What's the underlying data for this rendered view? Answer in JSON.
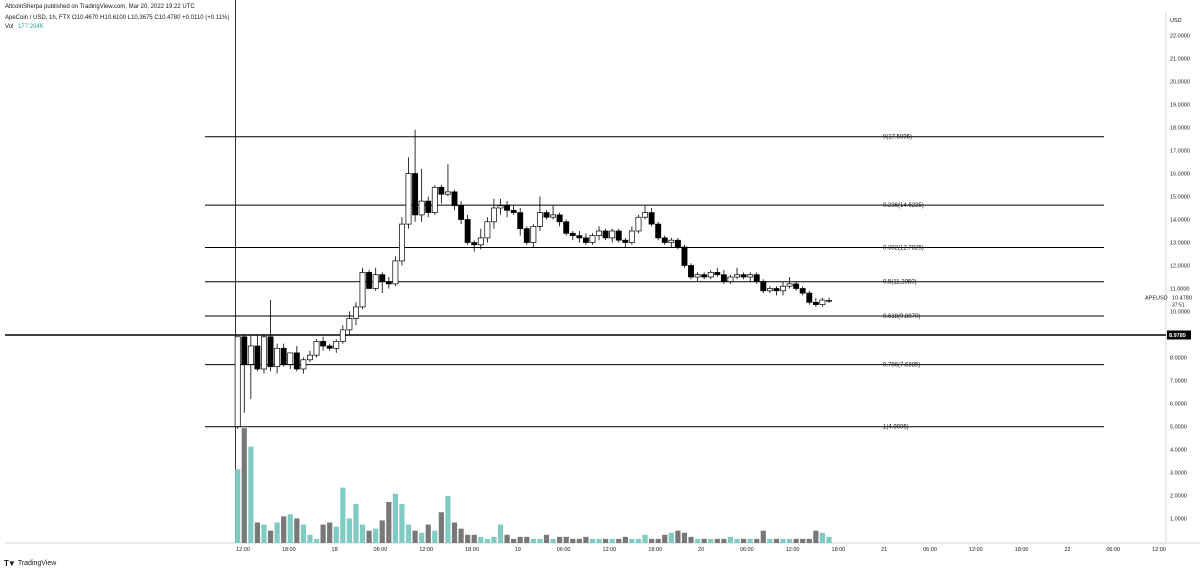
{
  "header": {
    "publisher": "AltcoinSherpa published on TradingView.com, Mar 20, 2022 19:22 UTC",
    "symbol_line": "ApeCoin / USD, 1h, FTX  O10.4670  H10.6100  L10.3675  C10.4780  +0.0110 (+0.11%)",
    "vol_label": "Vol",
    "vol_value": "177.204K",
    "vol_color": "#26a69a"
  },
  "footer": {
    "brand": "TradingView",
    "logo_icon": "tradingview-logo-icon"
  },
  "chart_data": {
    "type": "candlestick",
    "symbol": "APEUSD",
    "interval": "1h",
    "exchange": "FTX",
    "ylim": [
      0,
      22
    ],
    "y_unit_label": "USD",
    "y_ticks": [
      "1.0000",
      "2.0000",
      "3.0000",
      "4.0000",
      "5.0000",
      "6.0000",
      "7.0000",
      "8.0000",
      "9.0000",
      "10.0000",
      "11.0000",
      "12.0000",
      "13.0000",
      "14.0000",
      "15.0000",
      "16.0000",
      "17.0000",
      "18.0000",
      "19.0000",
      "20.0000",
      "21.0000",
      "22.0000"
    ],
    "x_ticks": [
      "12:00",
      "18:00",
      "18",
      "06:00",
      "12:00",
      "18:00",
      "19",
      "06:00",
      "12:00",
      "18:00",
      "20",
      "06:00",
      "12:00",
      "18:00",
      "21",
      "06:00",
      "12:00",
      "18:00",
      "22",
      "06:00",
      "12:00"
    ],
    "last_price": {
      "symbol": "APEUSD",
      "value": "10.4780",
      "countdown": "37:51"
    },
    "marked_level": {
      "label": "8.9785",
      "value": 8.9785
    },
    "fib_levels": [
      {
        "ratio": "0",
        "label": "0(17.5995)",
        "value": 17.5995
      },
      {
        "ratio": "0.236",
        "label": "0.236(14.6235)",
        "value": 14.6235
      },
      {
        "ratio": "0.382",
        "label": "0.382(12.7825)",
        "value": 12.7825
      },
      {
        "ratio": "0.5",
        "label": "0.5(11.2950)",
        "value": 11.295
      },
      {
        "ratio": "0.618",
        "label": "0.618(9.8070)",
        "value": 9.807
      },
      {
        "ratio": "0.786",
        "label": "0.786(7.6885)",
        "value": 7.6885
      },
      {
        "ratio": "1",
        "label": "1(4.9905)",
        "value": 4.9905
      }
    ],
    "candles": [
      [
        5.0,
        8.9,
        4.9,
        8.9
      ],
      [
        8.9,
        9.0,
        5.6,
        7.7
      ],
      [
        7.7,
        9.0,
        6.2,
        8.5
      ],
      [
        8.5,
        9.0,
        7.4,
        7.5
      ],
      [
        7.5,
        9.0,
        7.3,
        8.9
      ],
      [
        8.9,
        10.5,
        7.4,
        7.6
      ],
      [
        7.6,
        8.6,
        7.3,
        8.4
      ],
      [
        8.4,
        8.6,
        7.6,
        7.7
      ],
      [
        7.7,
        8.2,
        7.5,
        8.2
      ],
      [
        8.2,
        8.5,
        7.4,
        7.5
      ],
      [
        7.5,
        8.0,
        7.3,
        7.9
      ],
      [
        7.9,
        8.3,
        7.8,
        8.1
      ],
      [
        8.1,
        8.8,
        8.0,
        8.7
      ],
      [
        8.7,
        8.9,
        8.3,
        8.5
      ],
      [
        8.5,
        8.6,
        8.3,
        8.4
      ],
      [
        8.4,
        8.8,
        8.2,
        8.7
      ],
      [
        8.7,
        9.4,
        8.6,
        9.2
      ],
      [
        9.2,
        10.0,
        9.0,
        9.7
      ],
      [
        9.7,
        10.4,
        9.4,
        10.2
      ],
      [
        10.2,
        11.9,
        10.1,
        11.7
      ],
      [
        11.7,
        11.8,
        11.0,
        11.0
      ],
      [
        11.0,
        11.9,
        10.9,
        11.6
      ],
      [
        11.6,
        11.7,
        10.8,
        11.3
      ],
      [
        11.3,
        11.5,
        11.0,
        11.2
      ],
      [
        11.2,
        12.4,
        11.1,
        12.2
      ],
      [
        12.2,
        14.1,
        12.0,
        13.8
      ],
      [
        13.8,
        16.7,
        13.6,
        16.0
      ],
      [
        16.0,
        17.9,
        13.9,
        14.2
      ],
      [
        14.2,
        16.2,
        13.9,
        14.8
      ],
      [
        14.8,
        15.0,
        14.1,
        14.3
      ],
      [
        14.3,
        15.5,
        14.2,
        15.4
      ],
      [
        15.4,
        15.5,
        14.7,
        15.1
      ],
      [
        15.1,
        16.4,
        15.0,
        15.2
      ],
      [
        15.2,
        15.3,
        14.4,
        14.6
      ],
      [
        14.6,
        14.8,
        13.8,
        14.0
      ],
      [
        14.0,
        14.2,
        12.9,
        13.0
      ],
      [
        13.0,
        13.1,
        12.6,
        12.9
      ],
      [
        12.9,
        13.6,
        12.7,
        13.2
      ],
      [
        13.2,
        14.1,
        13.0,
        13.9
      ],
      [
        13.9,
        14.9,
        13.6,
        14.5
      ],
      [
        14.5,
        14.9,
        14.2,
        14.6
      ],
      [
        14.6,
        14.8,
        14.1,
        14.4
      ],
      [
        14.4,
        14.6,
        14.2,
        14.3
      ],
      [
        14.3,
        14.5,
        13.3,
        13.6
      ],
      [
        13.6,
        13.7,
        12.9,
        13.0
      ],
      [
        13.0,
        13.8,
        12.8,
        13.7
      ],
      [
        13.7,
        15.0,
        13.5,
        14.3
      ],
      [
        14.3,
        14.4,
        14.0,
        14.1
      ],
      [
        14.1,
        14.6,
        14.0,
        14.2
      ],
      [
        14.2,
        14.3,
        13.7,
        13.9
      ],
      [
        13.9,
        14.0,
        13.3,
        13.4
      ],
      [
        13.4,
        13.5,
        13.1,
        13.3
      ],
      [
        13.3,
        13.5,
        13.0,
        13.2
      ],
      [
        13.2,
        13.4,
        12.9,
        13.0
      ],
      [
        13.0,
        13.4,
        12.9,
        13.3
      ],
      [
        13.3,
        13.7,
        13.1,
        13.5
      ],
      [
        13.5,
        13.6,
        13.1,
        13.2
      ],
      [
        13.2,
        13.6,
        13.0,
        13.5
      ],
      [
        13.5,
        13.6,
        13.0,
        13.1
      ],
      [
        13.1,
        13.2,
        12.8,
        13.0
      ],
      [
        13.0,
        13.7,
        12.9,
        13.5
      ],
      [
        13.5,
        14.2,
        13.4,
        14.1
      ],
      [
        14.1,
        14.6,
        14.0,
        14.3
      ],
      [
        14.3,
        14.5,
        13.7,
        13.8
      ],
      [
        13.8,
        13.9,
        13.1,
        13.2
      ],
      [
        13.2,
        13.3,
        12.9,
        13.0
      ],
      [
        13.0,
        13.2,
        12.8,
        13.1
      ],
      [
        13.1,
        13.2,
        12.7,
        12.8
      ],
      [
        12.8,
        12.9,
        11.9,
        12.0
      ],
      [
        12.0,
        12.1,
        11.4,
        11.5
      ],
      [
        11.5,
        11.7,
        11.3,
        11.6
      ],
      [
        11.6,
        11.7,
        11.4,
        11.5
      ],
      [
        11.5,
        11.8,
        11.4,
        11.7
      ],
      [
        11.7,
        11.9,
        11.5,
        11.6
      ],
      [
        11.6,
        11.8,
        11.2,
        11.3
      ],
      [
        11.3,
        11.6,
        11.2,
        11.5
      ],
      [
        11.5,
        11.9,
        11.4,
        11.6
      ],
      [
        11.6,
        11.7,
        11.4,
        11.5
      ],
      [
        11.5,
        11.7,
        11.3,
        11.6
      ],
      [
        11.6,
        11.7,
        11.2,
        11.3
      ],
      [
        11.3,
        11.4,
        10.8,
        10.9
      ],
      [
        10.9,
        11.1,
        10.8,
        11.0
      ],
      [
        11.0,
        11.1,
        10.7,
        10.9
      ],
      [
        10.9,
        11.3,
        10.7,
        11.1
      ],
      [
        11.1,
        11.5,
        11.0,
        11.2
      ],
      [
        11.2,
        11.3,
        10.9,
        11.0
      ],
      [
        11.0,
        11.1,
        10.7,
        10.8
      ],
      [
        10.8,
        10.9,
        10.3,
        10.4
      ],
      [
        10.4,
        10.6,
        10.2,
        10.3
      ],
      [
        10.3,
        10.6,
        10.2,
        10.5
      ],
      [
        10.47,
        10.61,
        10.37,
        10.48
      ]
    ],
    "volumes": [
      3.6,
      5.6,
      4.7,
      1.0,
      0.9,
      0.6,
      1.0,
      1.3,
      1.4,
      1.2,
      0.9,
      0.4,
      0.2,
      0.9,
      1.0,
      0.8,
      2.7,
      1.2,
      1.9,
      0.9,
      0.6,
      0.7,
      1.1,
      2.0,
      2.4,
      1.9,
      0.9,
      0.6,
      0.5,
      0.9,
      0.6,
      1.5,
      2.3,
      1.0,
      0.7,
      0.4,
      0.4,
      0.3,
      0.2,
      0.3,
      0.9,
      0.4,
      0.2,
      0.3,
      0.3,
      0.2,
      0.2,
      0.4,
      0.2,
      0.3,
      0.3,
      0.2,
      0.2,
      0.3,
      0.2,
      0.2,
      0.2,
      0.2,
      0.2,
      0.3,
      0.2,
      0.2,
      0.4,
      0.2,
      0.2,
      0.4,
      0.5,
      0.6,
      0.5,
      0.3,
      0.2,
      0.2,
      0.2,
      0.2,
      0.2,
      0.3,
      0.2,
      0.2,
      0.2,
      0.2,
      0.6,
      0.2,
      0.2,
      0.2,
      0.2,
      0.2,
      0.2,
      0.2,
      0.6,
      0.5,
      0.3
    ],
    "colors": {
      "up_body": "#ffffff",
      "down_body": "#000000",
      "wick": "#000000",
      "vol_up": "#80cbc4",
      "vol_down": "#787878",
      "fib_line": "#000000"
    }
  }
}
